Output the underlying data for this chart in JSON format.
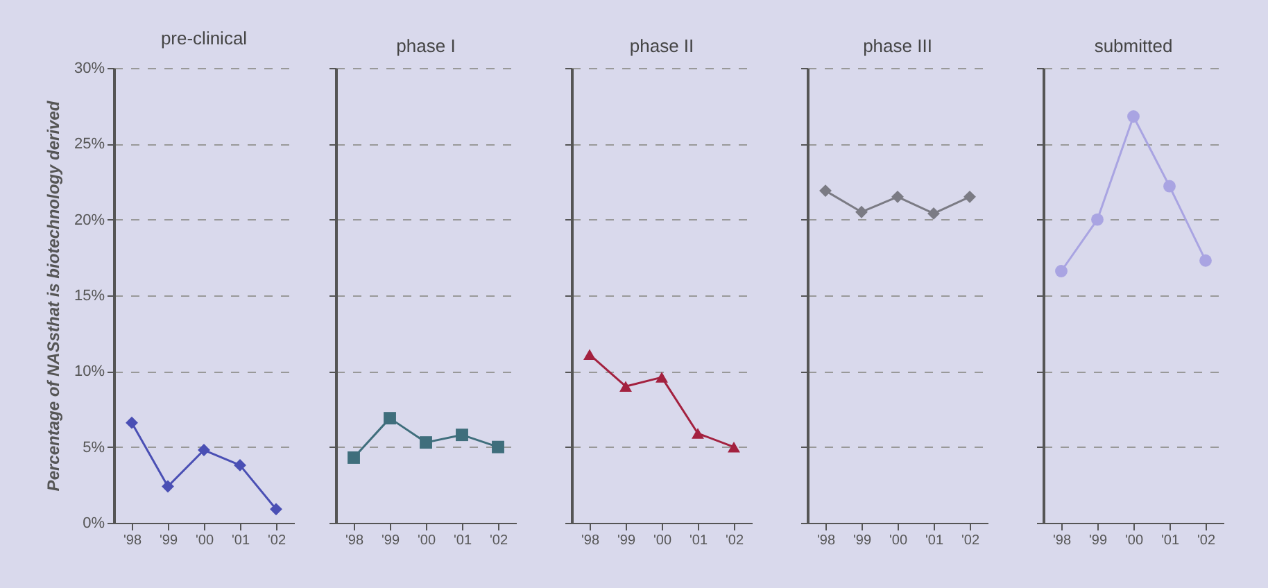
{
  "chart_data": [
    {
      "type": "line",
      "title": "pre-clinical",
      "ylabel": "Percentage of NASsthat is biotechnology derived",
      "categories": [
        "'98",
        "'99",
        "'00",
        "'01",
        "'02"
      ],
      "series": [
        {
          "color": "#4a4fb4",
          "values": [
            6.6,
            2.4,
            4.8,
            3.8,
            0.9
          ]
        }
      ],
      "marker": "diamond",
      "ylim": [
        0,
        30
      ],
      "yticks": [
        {
          "value": 0,
          "label": "0%"
        },
        {
          "value": 5,
          "label": "5%"
        },
        {
          "value": 10,
          "label": "10%"
        },
        {
          "value": 15,
          "label": "15%"
        },
        {
          "value": 20,
          "label": "20%"
        },
        {
          "value": 25,
          "label": "25%"
        },
        {
          "value": 30,
          "label": "30%"
        }
      ],
      "grid": "y"
    },
    {
      "type": "line",
      "title": "phase I",
      "categories": [
        "'98",
        "'99",
        "'00",
        "'01",
        "'02"
      ],
      "series": [
        {
          "color": "#3f6e7c",
          "values": [
            4.3,
            6.9,
            5.3,
            5.8,
            5.0
          ]
        }
      ],
      "marker": "square",
      "ylim": [
        0,
        30
      ],
      "yticks": [
        0,
        5,
        10,
        15,
        20,
        25,
        30
      ],
      "grid": "y",
      "tick_labels": "x"
    },
    {
      "type": "line",
      "title": "phase II",
      "categories": [
        "'98",
        "'99",
        "'00",
        "'01",
        "'02"
      ],
      "series": [
        {
          "color": "#a3213f",
          "values": [
            11.1,
            9.0,
            9.6,
            5.9,
            5.0
          ]
        }
      ],
      "marker": "triangle",
      "ylim": [
        0,
        30
      ],
      "yticks": [
        0,
        5,
        10,
        15,
        20,
        25,
        30
      ],
      "grid": "y",
      "tick_labels": "x"
    },
    {
      "type": "line",
      "title": "phase III",
      "categories": [
        "'98",
        "'99",
        "'00",
        "'01",
        "'02"
      ],
      "series": [
        {
          "color": "#7b7b84",
          "values": [
            21.9,
            20.5,
            21.5,
            20.4,
            21.5
          ]
        }
      ],
      "marker": "diamond",
      "ylim": [
        0,
        30
      ],
      "yticks": [
        0,
        5,
        10,
        15,
        20,
        25,
        30
      ],
      "grid": "y",
      "tick_labels": "x"
    },
    {
      "type": "line",
      "title": "submitted",
      "categories": [
        "'98",
        "'99",
        "'00",
        "'01",
        "'02"
      ],
      "series": [
        {
          "color": "#a9a4e2",
          "values": [
            16.6,
            20.0,
            26.8,
            22.2,
            17.3
          ]
        }
      ],
      "marker": "circle",
      "ylim": [
        0,
        30
      ],
      "yticks": [
        0,
        5,
        10,
        15,
        20,
        25,
        30
      ],
      "grid": "y",
      "tick_labels": "x"
    }
  ]
}
